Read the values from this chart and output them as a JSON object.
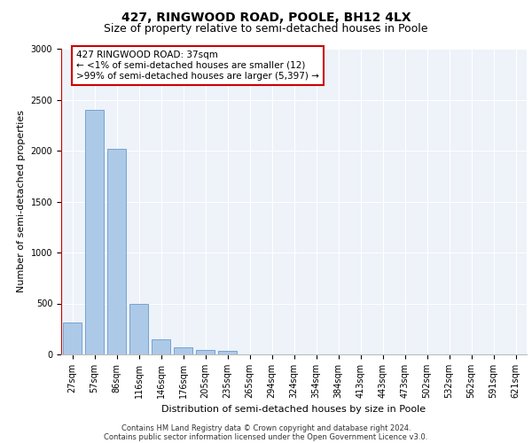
{
  "title": "427, RINGWOOD ROAD, POOLE, BH12 4LX",
  "subtitle": "Size of property relative to semi-detached houses in Poole",
  "xlabel": "Distribution of semi-detached houses by size in Poole",
  "ylabel": "Number of semi-detached properties",
  "footer_line1": "Contains HM Land Registry data © Crown copyright and database right 2024.",
  "footer_line2": "Contains public sector information licensed under the Open Government Licence v3.0.",
  "categories": [
    "27sqm",
    "57sqm",
    "86sqm",
    "116sqm",
    "146sqm",
    "176sqm",
    "205sqm",
    "235sqm",
    "265sqm",
    "294sqm",
    "324sqm",
    "354sqm",
    "384sqm",
    "413sqm",
    "443sqm",
    "473sqm",
    "502sqm",
    "532sqm",
    "562sqm",
    "591sqm",
    "621sqm"
  ],
  "values": [
    310,
    2400,
    2020,
    495,
    145,
    70,
    45,
    35,
    0,
    0,
    0,
    0,
    0,
    0,
    0,
    0,
    0,
    0,
    0,
    0,
    0
  ],
  "bar_color": "#adc9e8",
  "bar_edge_color": "#6699cc",
  "highlight_line_color": "#cc0000",
  "annotation_text": "427 RINGWOOD ROAD: 37sqm\n← <1% of semi-detached houses are smaller (12)\n>99% of semi-detached houses are larger (5,397) →",
  "annotation_box_color": "#cc0000",
  "ylim": [
    0,
    3000
  ],
  "yticks": [
    0,
    500,
    1000,
    1500,
    2000,
    2500,
    3000
  ],
  "background_color": "#eef2f9",
  "grid_color": "#ffffff",
  "title_fontsize": 10,
  "subtitle_fontsize": 9,
  "axis_label_fontsize": 8,
  "tick_fontsize": 7,
  "footer_fontsize": 6,
  "annotation_fontsize": 7.5
}
